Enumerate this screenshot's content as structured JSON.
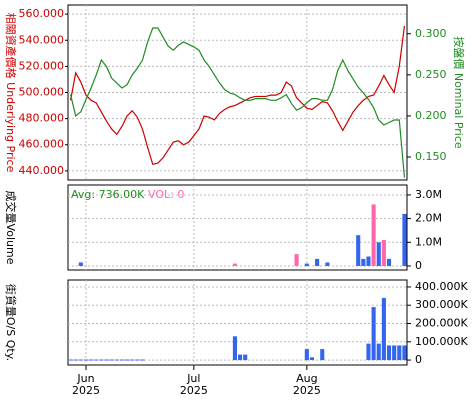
{
  "chart_data": [
    {
      "type": "line",
      "ylabel": "相關資產價格 Underlying Price",
      "y2label": "按盤價 Nominal Price",
      "ylim": [
        433,
        567
      ],
      "yticks": [
        {
          "value": 440,
          "label": "440.000"
        },
        {
          "value": 460,
          "label": "460.000"
        },
        {
          "value": 480,
          "label": "480.000"
        },
        {
          "value": 500,
          "label": "500.000"
        },
        {
          "value": 520,
          "label": "520.000"
        },
        {
          "value": 540,
          "label": "540.000"
        },
        {
          "value": 560,
          "label": "560.000"
        }
      ],
      "y2lim": [
        0.122,
        0.335
      ],
      "y2ticks": [
        {
          "value": 0.15,
          "label": "0.150"
        },
        {
          "value": 0.2,
          "label": "0.200"
        },
        {
          "value": 0.25,
          "label": "0.250"
        },
        {
          "value": 0.3,
          "label": "0.300"
        }
      ],
      "grid": true,
      "ycolor": "#cc0000",
      "y2color": "#228b22",
      "series": [
        {
          "color": "#cc0000",
          "values": [
            494,
            515,
            508,
            498,
            494,
            492,
            485,
            478,
            472,
            468,
            474,
            482,
            486,
            481,
            472,
            458,
            445,
            446,
            450,
            456,
            462,
            463,
            460,
            462,
            467,
            472,
            482,
            481,
            479,
            484,
            487,
            489,
            490,
            492,
            494,
            496,
            497,
            497,
            497,
            498,
            498,
            500,
            508,
            505,
            496,
            492,
            488,
            487,
            490,
            493,
            492,
            486,
            478,
            471,
            478,
            485,
            490,
            494,
            497,
            498,
            505,
            513,
            506,
            500,
            520,
            551
          ]
        },
        {
          "color": "#228b22",
          "axis": "y2",
          "values": [
            0.226,
            0.2,
            0.205,
            0.22,
            0.234,
            0.25,
            0.268,
            0.26,
            0.246,
            0.24,
            0.234,
            0.238,
            0.25,
            0.258,
            0.268,
            0.29,
            0.307,
            0.307,
            0.296,
            0.285,
            0.28,
            0.286,
            0.29,
            0.287,
            0.284,
            0.28,
            0.268,
            0.26,
            0.25,
            0.24,
            0.232,
            0.228,
            0.226,
            0.222,
            0.219,
            0.219,
            0.221,
            0.221,
            0.221,
            0.219,
            0.219,
            0.222,
            0.226,
            0.215,
            0.207,
            0.21,
            0.216,
            0.221,
            0.221,
            0.219,
            0.219,
            0.232,
            0.255,
            0.268,
            0.255,
            0.245,
            0.235,
            0.228,
            0.22,
            0.21,
            0.195,
            0.189,
            0.192,
            0.195,
            0.195,
            0.125
          ]
        }
      ]
    },
    {
      "type": "bar",
      "ylabel": "成交量Volume",
      "annotations": [
        {
          "text": "Avg: 736.00K",
          "color": "#228b22"
        },
        {
          "text": "VOL: 0",
          "color": "#ff69b4"
        }
      ],
      "ylim": [
        -170000,
        3420000
      ],
      "yticks": [
        0,
        {
          "value": 1000000,
          "label": "1.0M"
        },
        {
          "value": 2000000,
          "label": "2.0M"
        },
        {
          "value": 3000000,
          "label": "3.0M"
        }
      ],
      "grid": true,
      "values": [
        0,
        0,
        150000,
        0,
        0,
        0,
        0,
        0,
        0,
        0,
        0,
        0,
        0,
        0,
        0,
        0,
        0,
        0,
        0,
        0,
        0,
        0,
        0,
        0,
        0,
        0,
        0,
        0,
        0,
        0,
        0,
        0,
        100000,
        0,
        0,
        0,
        0,
        0,
        0,
        0,
        0,
        0,
        0,
        0,
        500000,
        0,
        100000,
        0,
        300000,
        0,
        150000,
        0,
        0,
        0,
        0,
        0,
        1300000,
        300000,
        400000,
        2600000,
        1000000,
        1100000,
        300000,
        0,
        0,
        2200000
      ],
      "colors": [
        "#36e",
        "#36e",
        "#36e",
        "#36e",
        "#36e",
        "#36e",
        "#36e",
        "#36e",
        "#36e",
        "#36e",
        "#36e",
        "#36e",
        "#36e",
        "#36e",
        "#36e",
        "#36e",
        "#36e",
        "#36e",
        "#36e",
        "#36e",
        "#36e",
        "#36e",
        "#36e",
        "#36e",
        "#36e",
        "#36e",
        "#36e",
        "#36e",
        "#36e",
        "#36e",
        "#36e",
        "#36e",
        "#f6a",
        "#36e",
        "#36e",
        "#36e",
        "#36e",
        "#36e",
        "#36e",
        "#36e",
        "#36e",
        "#36e",
        "#36e",
        "#36e",
        "#f6a",
        "#36e",
        "#36e",
        "#36e",
        "#36e",
        "#36e",
        "#36e",
        "#36e",
        "#36e",
        "#36e",
        "#36e",
        "#36e",
        "#36e",
        "#36e",
        "#36e",
        "#f6a",
        "#36e",
        "#f6a",
        "#36e",
        "#36e",
        "#36e",
        "#36e"
      ]
    },
    {
      "type": "bar",
      "ylabel": "街貨量O/S Qty.",
      "color": "#3366ee",
      "grid": true,
      "ylim": [
        -27000,
        438000
      ],
      "yticks": [
        0,
        {
          "value": 100000,
          "label": "100.000K"
        },
        {
          "value": 200000,
          "label": "200.000K"
        },
        {
          "value": 300000,
          "label": "300.000K"
        },
        {
          "value": 400000,
          "label": "400.000K"
        }
      ],
      "categories": [
        null,
        null,
        null,
        "Jun 2025",
        null,
        null,
        null,
        null,
        null,
        null,
        null,
        null,
        null,
        null,
        null,
        null,
        null,
        null,
        null,
        null,
        null,
        null,
        null,
        null,
        "Jul 2025",
        null,
        null,
        null,
        null,
        null,
        null,
        null,
        null,
        null,
        null,
        null,
        null,
        null,
        null,
        null,
        null,
        null,
        null,
        null,
        null,
        null,
        "Aug 2025",
        null,
        null,
        null,
        null,
        null,
        null,
        null,
        null,
        null,
        null,
        null,
        null,
        null,
        null,
        null,
        null,
        null,
        null,
        null
      ],
      "values": [
        3000,
        3000,
        3000,
        3000,
        3000,
        3000,
        3000,
        3000,
        3000,
        3000,
        3000,
        3000,
        3000,
        3000,
        3000,
        0,
        0,
        0,
        0,
        0,
        0,
        0,
        0,
        0,
        0,
        0,
        0,
        0,
        0,
        0,
        0,
        0,
        130000,
        30000,
        30000,
        0,
        0,
        0,
        0,
        0,
        0,
        0,
        0,
        0,
        0,
        0,
        60000,
        15000,
        0,
        60000,
        0,
        0,
        0,
        0,
        0,
        0,
        0,
        0,
        90000,
        290000,
        90000,
        340000,
        80000,
        80000,
        80000,
        80000
      ]
    }
  ]
}
